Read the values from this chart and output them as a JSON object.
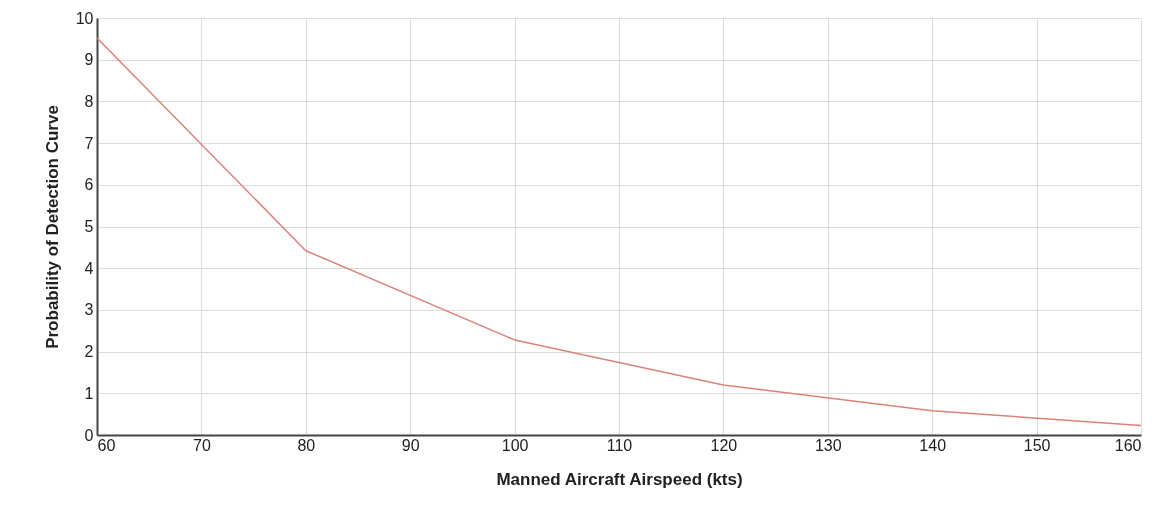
{
  "chart_data": {
    "type": "line",
    "xlabel": "Manned Aircraft Airspeed (kts)",
    "ylabel": "Probability of Detection Curve",
    "x": [
      60,
      80,
      100,
      120,
      140,
      160
    ],
    "series": [
      {
        "color": "#d9827a",
        "values": [
          9.52,
          4.42,
          2.28,
          1.2,
          0.58,
          0.23
        ]
      }
    ],
    "xlim": [
      60,
      160
    ],
    "xticks": [
      60,
      70,
      80,
      90,
      100,
      110,
      120,
      130,
      140,
      150,
      160
    ],
    "ylim": [
      0,
      10
    ],
    "yticks": [
      0,
      1,
      2,
      3,
      4,
      5,
      6,
      7,
      8,
      9,
      10
    ],
    "grid": true,
    "marker": "none",
    "line_style": "solid"
  }
}
